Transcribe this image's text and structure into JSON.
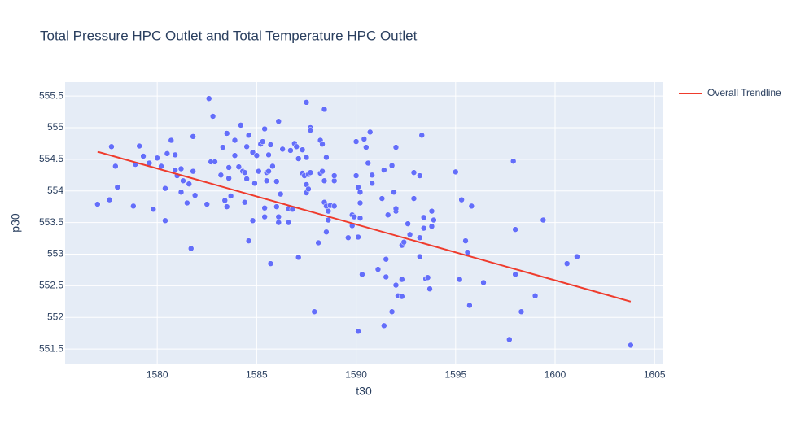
{
  "chart_data": {
    "type": "scatter",
    "title": "Total Pressure HPC Outlet and Total Temperature HPC Outlet",
    "xlabel": "t30",
    "ylabel": "p30",
    "xlim": [
      1575.37,
      1605.4
    ],
    "ylim": [
      551.27,
      555.72
    ],
    "xticks": [
      1580,
      1585,
      1590,
      1595,
      1600,
      1605
    ],
    "yticks": [
      551.5,
      552,
      552.5,
      553,
      553.5,
      554,
      554.5,
      555,
      555.5
    ],
    "grid": true,
    "legend": "right",
    "points": {
      "color": "#636efa",
      "x": [
        1577.0,
        1577.6,
        1577.7,
        1577.9,
        1578.0,
        1578.8,
        1578.9,
        1579.1,
        1579.3,
        1579.6,
        1579.8,
        1580.0,
        1580.2,
        1580.4,
        1580.4,
        1580.5,
        1580.7,
        1580.9,
        1580.9,
        1581.0,
        1581.2,
        1581.2,
        1581.3,
        1581.5,
        1581.6,
        1581.7,
        1581.8,
        1581.9,
        1581.8,
        1582.5,
        1582.6,
        1582.8,
        1582.7,
        1582.9,
        1583.2,
        1583.3,
        1583.4,
        1583.5,
        1583.5,
        1583.6,
        1583.6,
        1583.7,
        1583.9,
        1583.9,
        1584.1,
        1584.2,
        1584.3,
        1584.4,
        1584.4,
        1584.5,
        1584.5,
        1584.6,
        1584.6,
        1584.8,
        1584.8,
        1584.9,
        1585.0,
        1585.1,
        1585.2,
        1585.3,
        1585.4,
        1585.4,
        1585.4,
        1585.5,
        1585.5,
        1585.6,
        1585.6,
        1585.7,
        1585.7,
        1585.8,
        1586.0,
        1586.0,
        1586.1,
        1586.1,
        1586.1,
        1586.2,
        1586.3,
        1586.6,
        1586.6,
        1586.7,
        1586.8,
        1586.9,
        1587.0,
        1587.1,
        1587.1,
        1587.3,
        1587.3,
        1587.4,
        1587.5,
        1587.5,
        1587.5,
        1587.5,
        1587.6,
        1587.6,
        1587.7,
        1587.7,
        1587.7,
        1587.9,
        1588.1,
        1588.2,
        1588.2,
        1588.3,
        1588.3,
        1588.4,
        1588.4,
        1588.4,
        1588.5,
        1588.5,
        1588.5,
        1588.6,
        1588.6,
        1588.7,
        1588.9,
        1588.9,
        1588.9,
        1589.6,
        1589.8,
        1589.8,
        1589.9,
        1590.0,
        1590.0,
        1590.1,
        1590.1,
        1590.1,
        1590.2,
        1590.2,
        1590.2,
        1590.3,
        1590.4,
        1590.5,
        1590.6,
        1590.7,
        1590.8,
        1590.8,
        1591.1,
        1591.3,
        1591.4,
        1591.4,
        1591.5,
        1591.5,
        1591.6,
        1591.8,
        1591.8,
        1591.9,
        1592.0,
        1592.0,
        1592.0,
        1592.0,
        1592.1,
        1592.3,
        1592.3,
        1592.3,
        1592.4,
        1592.6,
        1592.7,
        1592.9,
        1592.9,
        1593.2,
        1593.2,
        1593.2,
        1593.3,
        1593.4,
        1593.4,
        1593.5,
        1593.6,
        1593.7,
        1593.8,
        1593.8,
        1593.9,
        1595.0,
        1595.2,
        1595.3,
        1595.5,
        1595.6,
        1595.7,
        1595.8,
        1596.4,
        1597.7,
        1597.9,
        1598.0,
        1598.0,
        1598.3,
        1599.0,
        1599.4,
        1600.6,
        1601.1,
        1603.8
      ],
      "y": [
        553.79,
        553.86,
        554.7,
        554.39,
        554.06,
        553.76,
        554.42,
        554.71,
        554.55,
        554.44,
        553.71,
        554.52,
        554.39,
        554.04,
        553.53,
        554.59,
        554.8,
        554.57,
        554.33,
        554.24,
        553.98,
        554.35,
        554.16,
        553.81,
        554.11,
        553.09,
        554.86,
        553.93,
        554.31,
        553.79,
        555.46,
        555.18,
        554.46,
        554.46,
        554.25,
        554.69,
        553.85,
        554.91,
        553.75,
        554.2,
        554.37,
        553.92,
        554.56,
        554.8,
        554.38,
        555.04,
        554.31,
        554.29,
        553.82,
        554.7,
        554.19,
        554.88,
        553.21,
        554.61,
        553.53,
        554.12,
        554.56,
        554.31,
        554.74,
        554.78,
        553.59,
        553.73,
        554.98,
        554.16,
        554.29,
        554.57,
        554.31,
        554.73,
        552.85,
        554.39,
        554.15,
        553.75,
        555.1,
        553.5,
        553.59,
        553.95,
        554.66,
        553.72,
        553.5,
        554.64,
        553.71,
        554.75,
        554.7,
        554.51,
        552.95,
        554.65,
        554.28,
        554.24,
        553.97,
        554.53,
        555.4,
        554.1,
        554.03,
        554.26,
        554.29,
        555.0,
        554.96,
        552.09,
        553.18,
        554.8,
        554.28,
        554.74,
        554.31,
        553.82,
        554.16,
        555.29,
        553.76,
        553.35,
        554.53,
        553.68,
        553.54,
        553.77,
        554.16,
        553.76,
        554.24,
        553.26,
        553.62,
        553.45,
        553.59,
        554.24,
        554.78,
        554.06,
        553.27,
        551.78,
        553.57,
        553.81,
        553.98,
        552.68,
        554.82,
        554.69,
        554.44,
        554.93,
        554.12,
        554.25,
        552.76,
        553.88,
        551.87,
        554.33,
        552.92,
        552.64,
        553.62,
        554.4,
        552.09,
        553.98,
        553.68,
        553.72,
        554.69,
        552.51,
        552.34,
        552.6,
        553.14,
        552.33,
        553.19,
        553.48,
        553.31,
        553.88,
        554.29,
        552.96,
        554.24,
        553.26,
        554.88,
        553.41,
        553.58,
        552.61,
        552.63,
        552.45,
        553.44,
        553.68,
        553.54,
        554.3,
        552.6,
        553.86,
        553.21,
        553.03,
        552.19,
        553.76,
        552.55,
        551.65,
        554.47,
        553.39,
        552.68,
        552.09,
        552.34,
        553.54,
        552.85,
        552.96,
        551.56
      ]
    },
    "series": [
      {
        "name": "Overall Trendline",
        "color": "#ef3b2c",
        "x": [
          1577.0,
          1603.8
        ],
        "y": [
          554.62,
          552.25
        ]
      }
    ]
  }
}
